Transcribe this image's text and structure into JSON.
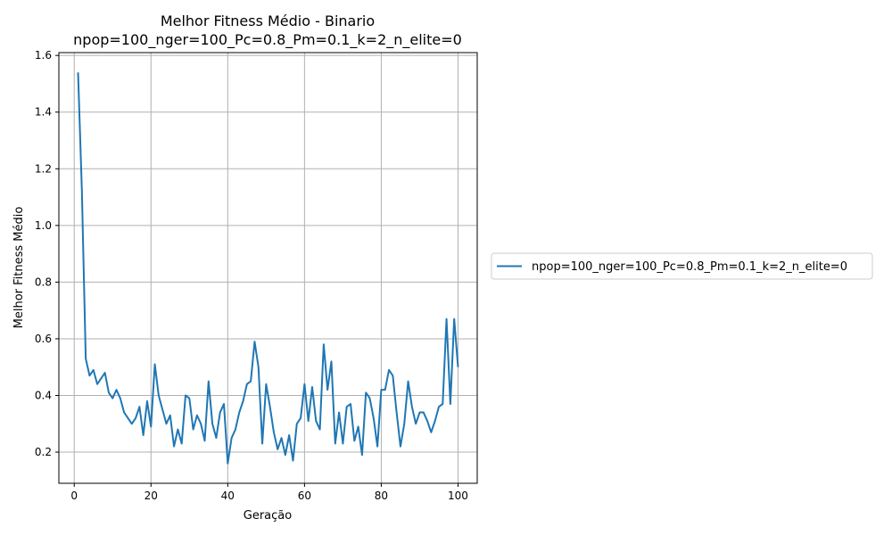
{
  "chart_data": {
    "type": "line",
    "title_line1": "Melhor Fitness Médio - Binario",
    "title_line2": "npop=100_nger=100_Pc=0.8_Pm=0.1_k=2_n_elite=0",
    "xlabel": "Geração",
    "ylabel": "Melhor Fitness Médio",
    "xlim": [
      -4,
      105
    ],
    "ylim": [
      0.09,
      1.61
    ],
    "xticks": [
      0,
      20,
      40,
      60,
      80,
      100
    ],
    "yticks": [
      0.2,
      0.4,
      0.6,
      0.8,
      1.0,
      1.2,
      1.4,
      1.6
    ],
    "ytick_labels": [
      "0.2",
      "0.4",
      "0.6",
      "0.8",
      "1.0",
      "1.2",
      "1.4",
      "1.6"
    ],
    "grid": true,
    "legend_placement": "outside-right",
    "series": [
      {
        "name": "npop=100_nger=100_Pc=0.8_Pm=0.1_k=2_n_elite=0",
        "color": "#1f77b4",
        "x": [
          1,
          2,
          3,
          4,
          5,
          6,
          7,
          8,
          9,
          10,
          11,
          12,
          13,
          14,
          15,
          16,
          17,
          18,
          19,
          20,
          21,
          22,
          23,
          24,
          25,
          26,
          27,
          28,
          29,
          30,
          31,
          32,
          33,
          34,
          35,
          36,
          37,
          38,
          39,
          40,
          41,
          42,
          43,
          44,
          45,
          46,
          47,
          48,
          49,
          50,
          51,
          52,
          53,
          54,
          55,
          56,
          57,
          58,
          59,
          60,
          61,
          62,
          63,
          64,
          65,
          66,
          67,
          68,
          69,
          70,
          71,
          72,
          73,
          74,
          75,
          76,
          77,
          78,
          79,
          80,
          81,
          82,
          83,
          84,
          85,
          86,
          87,
          88,
          89,
          90,
          91,
          92,
          93,
          94,
          95,
          96,
          97,
          98,
          99,
          100
        ],
        "values": [
          1.54,
          1.12,
          0.53,
          0.47,
          0.49,
          0.44,
          0.46,
          0.48,
          0.41,
          0.39,
          0.42,
          0.39,
          0.34,
          0.32,
          0.3,
          0.32,
          0.36,
          0.26,
          0.38,
          0.29,
          0.51,
          0.4,
          0.35,
          0.3,
          0.33,
          0.22,
          0.28,
          0.23,
          0.4,
          0.39,
          0.28,
          0.33,
          0.3,
          0.24,
          0.45,
          0.3,
          0.25,
          0.34,
          0.37,
          0.16,
          0.25,
          0.28,
          0.34,
          0.38,
          0.44,
          0.45,
          0.59,
          0.5,
          0.23,
          0.44,
          0.36,
          0.27,
          0.21,
          0.25,
          0.19,
          0.26,
          0.17,
          0.3,
          0.32,
          0.44,
          0.31,
          0.43,
          0.31,
          0.28,
          0.58,
          0.42,
          0.52,
          0.23,
          0.34,
          0.23,
          0.36,
          0.37,
          0.24,
          0.29,
          0.19,
          0.41,
          0.39,
          0.32,
          0.22,
          0.42,
          0.42,
          0.49,
          0.47,
          0.34,
          0.22,
          0.3,
          0.45,
          0.36,
          0.3,
          0.34,
          0.34,
          0.31,
          0.27,
          0.31,
          0.36,
          0.37,
          0.67,
          0.37,
          0.67,
          0.5
        ]
      }
    ]
  }
}
